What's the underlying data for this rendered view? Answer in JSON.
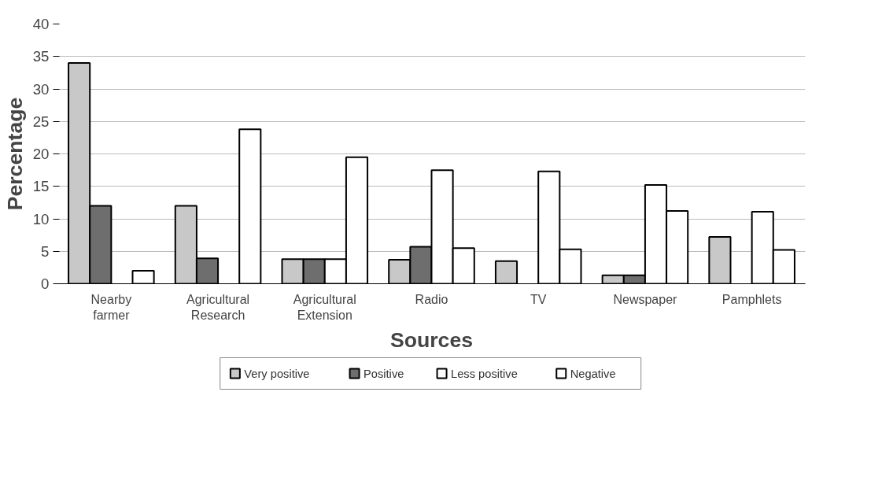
{
  "chart_data": {
    "type": "bar",
    "xlabel": "Sources",
    "ylabel": "Percentage",
    "categories": [
      "Nearby farmer",
      "Agricultural Research",
      "Agricultural Extension",
      "Radio",
      "TV",
      "Newspaper",
      "Pamphlets"
    ],
    "series": [
      {
        "name": "Very positive",
        "color": "#c8c8c8",
        "values": [
          34,
          12,
          3.8,
          3.7,
          3.5,
          1.3,
          7.2
        ]
      },
      {
        "name": "Positive",
        "color": "#6e6e6e",
        "values": [
          12,
          3.9,
          3.8,
          5.7,
          0,
          1.3,
          0
        ]
      },
      {
        "name": "Less positive",
        "color": "#ffffff",
        "values": [
          0,
          0,
          3.8,
          17.5,
          17.3,
          15.2,
          11.1
        ]
      },
      {
        "name": "Negative",
        "color": "#ffffff",
        "values": [
          2,
          23.8,
          19.5,
          5.5,
          5.3,
          11.2,
          5.2
        ]
      }
    ],
    "ylim": [
      0,
      40
    ],
    "yticks": [
      0,
      5,
      10,
      15,
      20,
      25,
      30,
      35,
      40
    ],
    "grid": "y",
    "legend": "bottom"
  }
}
